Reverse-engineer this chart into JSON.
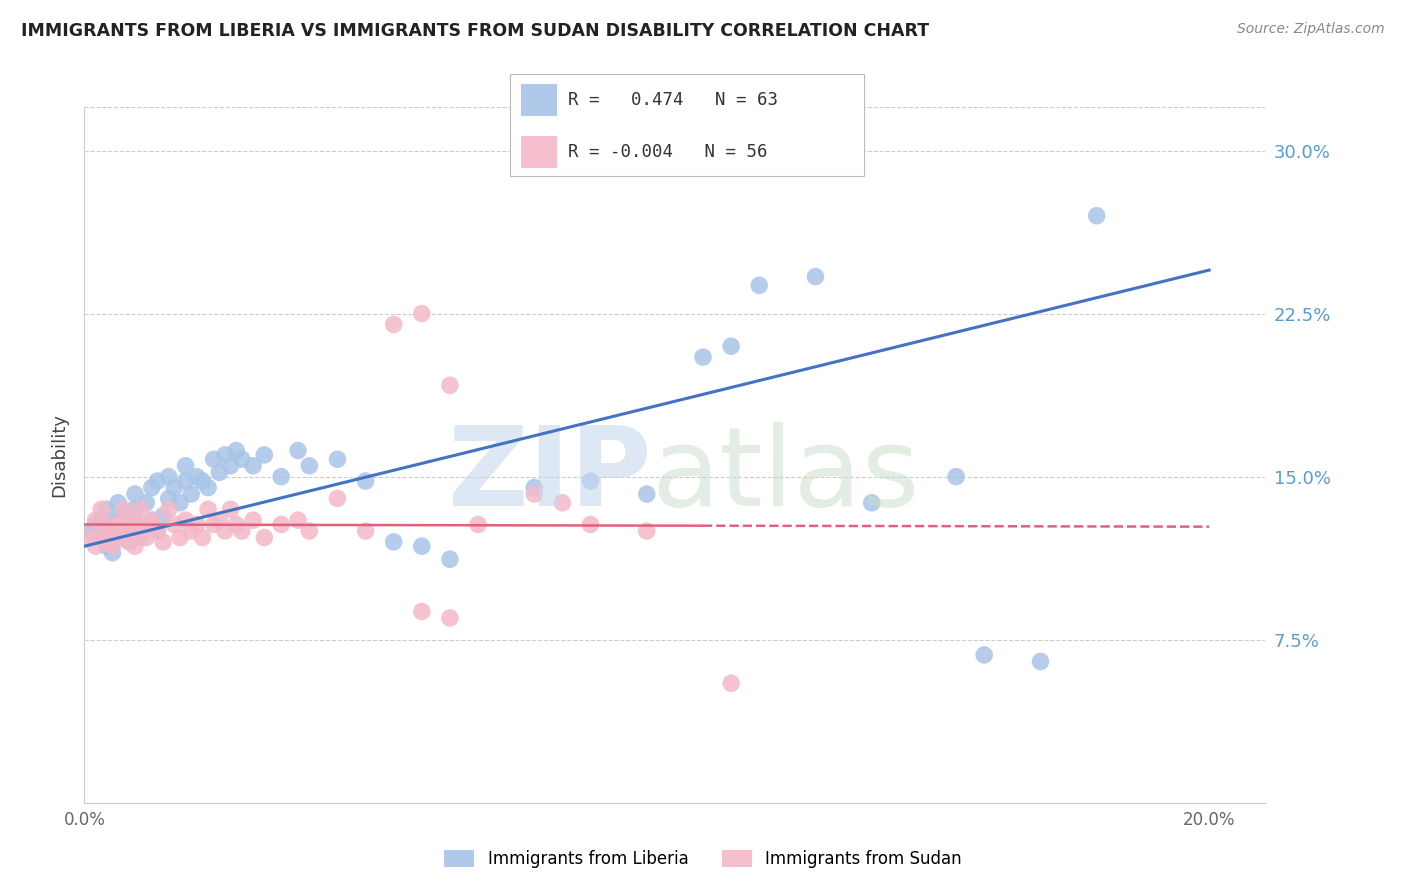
{
  "title": "IMMIGRANTS FROM LIBERIA VS IMMIGRANTS FROM SUDAN DISABILITY CORRELATION CHART",
  "source": "Source: ZipAtlas.com",
  "ylabel": "Disability",
  "ytick_labels": [
    "7.5%",
    "15.0%",
    "22.5%",
    "30.0%"
  ],
  "ytick_values": [
    0.075,
    0.15,
    0.225,
    0.3
  ],
  "xlim": [
    0.0,
    0.21
  ],
  "ylim": [
    0.0,
    0.32
  ],
  "legend_liberia_r": "0.474",
  "legend_liberia_n": "63",
  "legend_sudan_r": "-0.004",
  "legend_sudan_n": "56",
  "liberia_color": "#a8c4e8",
  "sudan_color": "#f4b8c8",
  "liberia_line_color": "#4472C4",
  "sudan_line_color": "#E06080",
  "liberia_scatter_x": [
    0.001,
    0.002,
    0.003,
    0.003,
    0.004,
    0.004,
    0.005,
    0.005,
    0.005,
    0.006,
    0.006,
    0.007,
    0.007,
    0.008,
    0.008,
    0.009,
    0.009,
    0.01,
    0.01,
    0.011,
    0.012,
    0.012,
    0.013,
    0.013,
    0.014,
    0.015,
    0.015,
    0.016,
    0.017,
    0.018,
    0.018,
    0.019,
    0.02,
    0.021,
    0.022,
    0.023,
    0.024,
    0.025,
    0.026,
    0.027,
    0.028,
    0.03,
    0.032,
    0.035,
    0.038,
    0.04,
    0.045,
    0.05,
    0.055,
    0.06,
    0.065,
    0.08,
    0.09,
    0.1,
    0.11,
    0.115,
    0.12,
    0.13,
    0.14,
    0.155,
    0.16,
    0.17,
    0.18
  ],
  "liberia_scatter_y": [
    0.125,
    0.128,
    0.122,
    0.13,
    0.118,
    0.135,
    0.12,
    0.128,
    0.115,
    0.13,
    0.138,
    0.125,
    0.132,
    0.128,
    0.12,
    0.135,
    0.142,
    0.128,
    0.122,
    0.138,
    0.13,
    0.145,
    0.125,
    0.148,
    0.132,
    0.14,
    0.15,
    0.145,
    0.138,
    0.148,
    0.155,
    0.142,
    0.15,
    0.148,
    0.145,
    0.158,
    0.152,
    0.16,
    0.155,
    0.162,
    0.158,
    0.155,
    0.16,
    0.15,
    0.162,
    0.155,
    0.158,
    0.148,
    0.12,
    0.118,
    0.112,
    0.145,
    0.148,
    0.142,
    0.205,
    0.21,
    0.238,
    0.242,
    0.138,
    0.15,
    0.068,
    0.065,
    0.27
  ],
  "sudan_scatter_x": [
    0.001,
    0.002,
    0.002,
    0.003,
    0.003,
    0.004,
    0.004,
    0.005,
    0.005,
    0.006,
    0.006,
    0.007,
    0.007,
    0.008,
    0.008,
    0.009,
    0.009,
    0.01,
    0.01,
    0.011,
    0.012,
    0.012,
    0.013,
    0.014,
    0.015,
    0.016,
    0.017,
    0.018,
    0.019,
    0.02,
    0.021,
    0.022,
    0.023,
    0.024,
    0.025,
    0.026,
    0.027,
    0.028,
    0.03,
    0.032,
    0.035,
    0.038,
    0.04,
    0.045,
    0.05,
    0.055,
    0.06,
    0.065,
    0.07,
    0.08,
    0.085,
    0.09,
    0.1,
    0.06,
    0.065,
    0.115
  ],
  "sudan_scatter_y": [
    0.122,
    0.118,
    0.13,
    0.125,
    0.135,
    0.128,
    0.12,
    0.125,
    0.118,
    0.128,
    0.122,
    0.135,
    0.128,
    0.12,
    0.13,
    0.125,
    0.118,
    0.128,
    0.135,
    0.122,
    0.13,
    0.128,
    0.125,
    0.12,
    0.135,
    0.128,
    0.122,
    0.13,
    0.125,
    0.128,
    0.122,
    0.135,
    0.128,
    0.13,
    0.125,
    0.135,
    0.128,
    0.125,
    0.13,
    0.122,
    0.128,
    0.13,
    0.125,
    0.14,
    0.125,
    0.22,
    0.225,
    0.192,
    0.128,
    0.142,
    0.138,
    0.128,
    0.125,
    0.088,
    0.085,
    0.055
  ],
  "liberia_trendline_x": [
    0.0,
    0.2
  ],
  "liberia_trendline_y": [
    0.118,
    0.245
  ],
  "sudan_trendline_x": [
    0.0,
    0.2
  ],
  "sudan_trendline_y": [
    0.128,
    0.127
  ],
  "sudan_trendline_solid_end": 0.11,
  "sudan_trendline_dashed_start": 0.11
}
